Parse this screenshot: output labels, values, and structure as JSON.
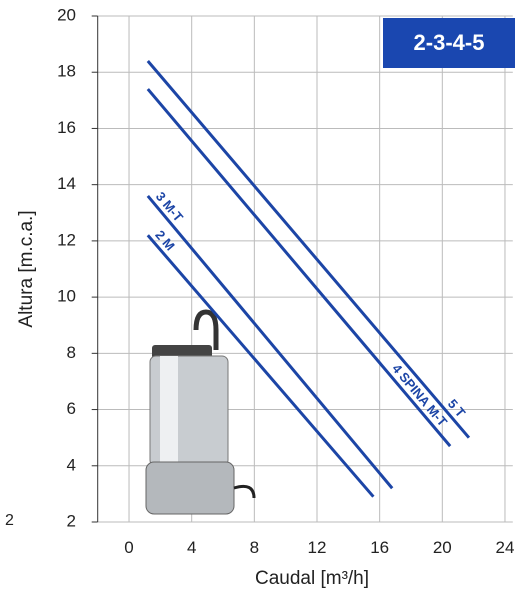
{
  "chart_data": {
    "type": "line",
    "badge": "2-3-4-5",
    "x_label": "Caudal [m³/h]",
    "y_label": "Altura [m.c.a.]",
    "annotations": [
      "2"
    ],
    "xlim": [
      -2,
      24.5
    ],
    "ylim": [
      2,
      20
    ],
    "xticks": [
      0,
      4,
      8,
      12,
      16,
      20,
      24
    ],
    "yticks": [
      2,
      4,
      6,
      8,
      10,
      12,
      14,
      16,
      18,
      20
    ],
    "grid": true,
    "series": [
      {
        "name": "5 T",
        "color": "#1c45a6",
        "x": [
          1.2,
          21.7
        ],
        "values": [
          18.4,
          5.0
        ]
      },
      {
        "name": "4 SPINA M-T",
        "color": "#1c45a6",
        "x": [
          1.2,
          20.5
        ],
        "values": [
          17.4,
          4.7
        ]
      },
      {
        "name": "3 M-T",
        "color": "#1c45a6",
        "x": [
          1.2,
          16.8
        ],
        "values": [
          13.6,
          3.2
        ]
      },
      {
        "name": "2 M",
        "color": "#1c45a6",
        "x": [
          1.2,
          15.6
        ],
        "values": [
          12.2,
          2.9
        ]
      }
    ]
  }
}
